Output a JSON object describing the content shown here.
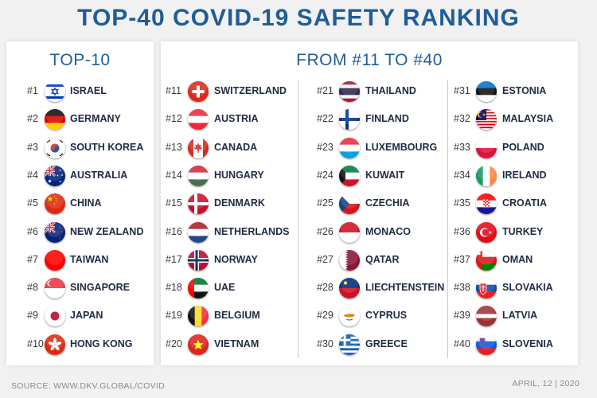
{
  "title": "TOP-40 COVID-19 SAFETY RANKING",
  "top10": {
    "heading": "TOP-10",
    "entries": [
      {
        "rank": "#1",
        "country": "ISRAEL",
        "flag": "israel-flag-icon"
      },
      {
        "rank": "#2",
        "country": "GERMANY",
        "flag": "germany-flag-icon"
      },
      {
        "rank": "#3",
        "country": "SOUTH KOREA",
        "flag": "south-korea-flag-icon"
      },
      {
        "rank": "#4",
        "country": "AUSTRALIA",
        "flag": "australia-flag-icon"
      },
      {
        "rank": "#5",
        "country": "CHINA",
        "flag": "china-flag-icon"
      },
      {
        "rank": "#6",
        "country": "NEW ZEALAND",
        "flag": "new-zealand-flag-icon"
      },
      {
        "rank": "#7",
        "country": "TAIWAN",
        "flag": "taiwan-flag-icon"
      },
      {
        "rank": "#8",
        "country": "SINGAPORE",
        "flag": "singapore-flag-icon"
      },
      {
        "rank": "#9",
        "country": "JAPAN",
        "flag": "japan-flag-icon"
      },
      {
        "rank": "#10",
        "country": "HONG KONG",
        "flag": "hong-kong-flag-icon"
      }
    ]
  },
  "rest": {
    "heading": "FROM #11 TO #40",
    "columns": [
      [
        {
          "rank": "#11",
          "country": "SWITZERLAND",
          "flag": "switzerland-flag-icon"
        },
        {
          "rank": "#12",
          "country": "AUSTRIA",
          "flag": "austria-flag-icon"
        },
        {
          "rank": "#13",
          "country": "CANADA",
          "flag": "canada-flag-icon"
        },
        {
          "rank": "#14",
          "country": "HUNGARY",
          "flag": "hungary-flag-icon"
        },
        {
          "rank": "#15",
          "country": "DENMARK",
          "flag": "denmark-flag-icon"
        },
        {
          "rank": "#16",
          "country": "NETHERLANDS",
          "flag": "netherlands-flag-icon"
        },
        {
          "rank": "#17",
          "country": "NORWAY",
          "flag": "norway-flag-icon"
        },
        {
          "rank": "#18",
          "country": "UAE",
          "flag": "uae-flag-icon"
        },
        {
          "rank": "#19",
          "country": "BELGIUM",
          "flag": "belgium-flag-icon"
        },
        {
          "rank": "#20",
          "country": "VIETNAM",
          "flag": "vietnam-flag-icon"
        }
      ],
      [
        {
          "rank": "#21",
          "country": "THAILAND",
          "flag": "thailand-flag-icon"
        },
        {
          "rank": "#22",
          "country": "FINLAND",
          "flag": "finland-flag-icon"
        },
        {
          "rank": "#23",
          "country": "LUXEMBOURG",
          "flag": "luxembourg-flag-icon"
        },
        {
          "rank": "#24",
          "country": "KUWAIT",
          "flag": "kuwait-flag-icon"
        },
        {
          "rank": "#25",
          "country": "CZECHIA",
          "flag": "czechia-flag-icon"
        },
        {
          "rank": "#26",
          "country": "MONACO",
          "flag": "monaco-flag-icon"
        },
        {
          "rank": "#27",
          "country": "QATAR",
          "flag": "qatar-flag-icon"
        },
        {
          "rank": "#28",
          "country": "LIECHTENSTEIN",
          "flag": "liechtenstein-flag-icon"
        },
        {
          "rank": "#29",
          "country": "CYPRUS",
          "flag": "cyprus-flag-icon"
        },
        {
          "rank": "#30",
          "country": "GREECE",
          "flag": "greece-flag-icon"
        }
      ],
      [
        {
          "rank": "#31",
          "country": "ESTONIA",
          "flag": "estonia-flag-icon"
        },
        {
          "rank": "#32",
          "country": "MALAYSIA",
          "flag": "malaysia-flag-icon"
        },
        {
          "rank": "#33",
          "country": "POLAND",
          "flag": "poland-flag-icon"
        },
        {
          "rank": "#34",
          "country": "IRELAND",
          "flag": "ireland-flag-icon"
        },
        {
          "rank": "#35",
          "country": "CROATIA",
          "flag": "croatia-flag-icon"
        },
        {
          "rank": "#36",
          "country": "TURKEY",
          "flag": "turkey-flag-icon"
        },
        {
          "rank": "#37",
          "country": "OMAN",
          "flag": "oman-flag-icon"
        },
        {
          "rank": "#38",
          "country": "SLOVAKIA",
          "flag": "slovakia-flag-icon"
        },
        {
          "rank": "#39",
          "country": "LATVIA",
          "flag": "latvia-flag-icon"
        },
        {
          "rank": "#40",
          "country": "SLOVENIA",
          "flag": "slovenia-flag-icon"
        }
      ]
    ]
  },
  "footer": {
    "source": "SOURCE: WWW.DKV.GLOBAL/COVID",
    "date": "APRIL, 12 | 2020"
  },
  "colors": {
    "title": "#1f5e97",
    "country_text": "#1e2a44",
    "rank_text": "#3a3a3a",
    "footer_text": "#8a8a8a"
  }
}
